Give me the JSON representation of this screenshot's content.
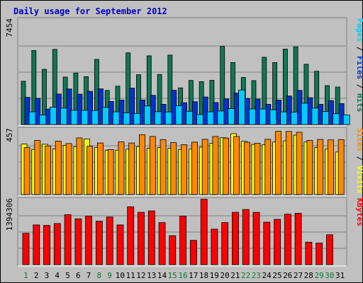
{
  "chart_data": {
    "type": "bar",
    "title": "Daily usage for September 2012",
    "days": [
      "1",
      "2",
      "3",
      "4",
      "5",
      "6",
      "7",
      "8",
      "9",
      "10",
      "11",
      "12",
      "13",
      "14",
      "15",
      "16",
      "17",
      "18",
      "19",
      "20",
      "21",
      "22",
      "23",
      "24",
      "25",
      "26",
      "27",
      "28",
      "29",
      "30",
      "31"
    ],
    "day_colors": [
      "#117733",
      "#000000",
      "#000000",
      "#000000",
      "#000000",
      "#000000",
      "#000000",
      "#117733",
      "#117733",
      "#000000",
      "#000000",
      "#000000",
      "#000000",
      "#000000",
      "#117733",
      "#117733",
      "#000000",
      "#000000",
      "#000000",
      "#000000",
      "#000000",
      "#117733",
      "#117733",
      "#000000",
      "#000000",
      "#000000",
      "#000000",
      "#000000",
      "#117733",
      "#117733",
      "#000000"
    ],
    "panels": [
      {
        "name": "hits-panel",
        "max_label": "7454",
        "ymax": 7454,
        "legend": [
          {
            "text": "Pages",
            "color": "#00CCFF"
          },
          {
            "text": " / ",
            "color": "#000000"
          },
          {
            "text": "Files",
            "color": "#0033CC"
          },
          {
            "text": " / ",
            "color": "#000000"
          },
          {
            "text": "Hits",
            "color": "#117755"
          }
        ],
        "series": [
          {
            "name": "Hits",
            "color": "#117755",
            "values": [
              3080,
              5270,
              3930,
              5350,
              3380,
              3660,
              3410,
              4640,
              2430,
              2730,
              5100,
              3550,
              4890,
              3560,
              4940,
              2610,
              3140,
              3050,
              3150,
              5560,
              4410,
              3350,
              3130,
              4790,
              4410,
              5370,
              5530,
              4290,
              3790,
              2770,
              2670
            ]
          },
          {
            "name": "Files",
            "color": "#0033CC",
            "values": [
              1940,
              1860,
              1100,
              2170,
              2530,
              2160,
              2360,
              2540,
              1640,
              1740,
              2590,
              1750,
              2080,
              1440,
              2440,
              1550,
              1620,
              1960,
              1560,
              1820,
              2240,
              1860,
              1810,
              1440,
              1740,
              2030,
              2430,
              1910,
              1440,
              1700,
              1490
            ]
          },
          {
            "name": "Pages",
            "color": "#00CCFF",
            "values": [
              900,
              680,
              1240,
              1170,
              1010,
              1010,
              1000,
              1220,
              900,
              830,
              790,
              1320,
              910,
              890,
              1340,
              940,
              710,
              900,
              960,
              1130,
              2460,
              1110,
              1110,
              1050,
              900,
              870,
              1520,
              1170,
              930,
              770,
              680
            ]
          }
        ]
      },
      {
        "name": "visits-panel",
        "max_label": "457",
        "ymax": 457,
        "legend": [
          {
            "text": "Sites",
            "color": "#FF8800"
          },
          {
            "text": " / ",
            "color": "#000000"
          },
          {
            "text": "Visits",
            "color": "#FFFF00"
          }
        ],
        "series": [
          {
            "name": "Visits",
            "color": "#FFFF00",
            "values": [
              355,
              317,
              353,
              321,
              345,
              336,
              390,
              331,
              312,
              312,
              319,
              337,
              326,
              330,
              325,
              317,
              320,
              333,
              360,
              399,
              427,
              374,
              352,
              349,
              369,
              377,
              417,
              369,
              331,
              319,
              299
            ]
          },
          {
            "name": "Sites",
            "color": "#FF8800",
            "values": [
              330,
              380,
              342,
              375,
              358,
              398,
              340,
              362,
              316,
              370,
              362,
              420,
              408,
              386,
              365,
              350,
              368,
              388,
              408,
              397,
              408,
              367,
              360,
              388,
              444,
              443,
              437,
              380,
              387,
              384,
              386
            ]
          }
        ]
      },
      {
        "name": "kbytes-panel",
        "max_label": "1394306",
        "ymax": 1394306,
        "legend": [
          {
            "text": "KBytes",
            "color": "#FF0000"
          }
        ],
        "series": [
          {
            "name": "KBytes",
            "color": "#FF0000",
            "values": [
              670000,
              850000,
              840000,
              880000,
              1070000,
              980000,
              1040000,
              930000,
              1020000,
              850000,
              1240000,
              1120000,
              1150000,
              900000,
              620000,
              1040000,
              520000,
              1400000,
              760000,
              900000,
              1120000,
              1180000,
              1120000,
              910000,
              970000,
              1080000,
              1100000,
              480000,
              460000,
              640000,
              0
            ]
          }
        ]
      }
    ]
  }
}
